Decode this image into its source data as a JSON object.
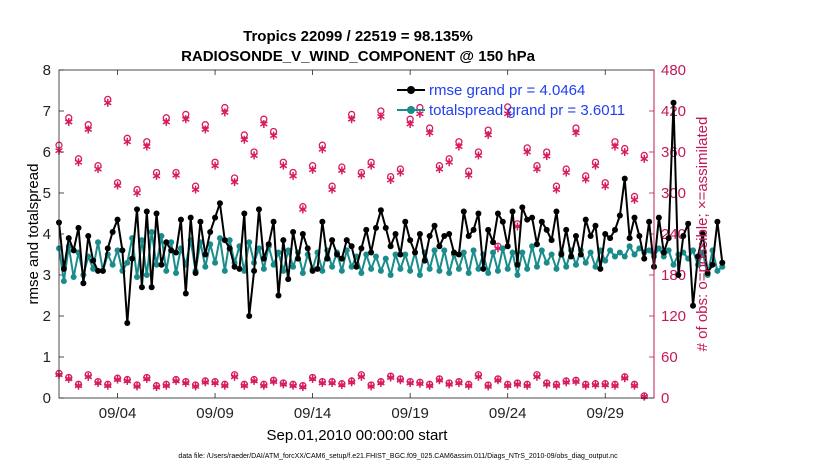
{
  "chart_data": {
    "type": "line",
    "title": "Tropics 22099 / 22519 = 98.135%",
    "subtitle": "RADIOSONDE_V_WIND_COMPONENT @ 150 hPa",
    "xlabel": "Sep.01,2010 00:00:00 start",
    "ylabel_left": "rmse and totalspread",
    "ylabel_right": "# of obs: o=possible; ×=assimilated",
    "footnote": "data file: /Users/raeder/DAI/ATM_forcXX/CAM6_setup/f.e21.FHIST_BGC.f09_025.CAM6assim.011/Diags_NTrS_2010-09/obs_diag_output.nc",
    "xlim": [
      1,
      31.5
    ],
    "ylim_left": [
      0,
      8
    ],
    "ylim_right": [
      0,
      480
    ],
    "left_ticks": [
      0,
      1,
      2,
      3,
      4,
      5,
      6,
      7,
      8
    ],
    "right_ticks": [
      0,
      60,
      120,
      180,
      240,
      300,
      360,
      420,
      480
    ],
    "x_ticks": [
      {
        "day": 4,
        "label": "09/04"
      },
      {
        "day": 9,
        "label": "09/09"
      },
      {
        "day": 14,
        "label": "09/14"
      },
      {
        "day": 19,
        "label": "09/19"
      },
      {
        "day": 24,
        "label": "09/24"
      },
      {
        "day": 29,
        "label": "09/29"
      }
    ],
    "colors": {
      "rmse": "#000000",
      "spread": "#1a8c8c",
      "obs": "#d81b60",
      "right_axis": "#c2185b"
    },
    "series": [
      {
        "name": "rmse grand pr = 4.0464",
        "axis": "left",
        "x_start": 1.0,
        "x_step": 0.25,
        "values": [
          4.28,
          3.15,
          3.9,
          3.6,
          4.15,
          2.8,
          3.95,
          3.35,
          3.1,
          3.1,
          3.65,
          4.05,
          4.35,
          3.6,
          1.83,
          3.4,
          4.6,
          2.7,
          4.55,
          2.7,
          4.5,
          3.25,
          3.8,
          3.6,
          3.55,
          4.35,
          2.55,
          4.4,
          3.05,
          4.3,
          3.5,
          4.05,
          4.4,
          4.75,
          3.85,
          3.65,
          3.2,
          3.15,
          4.5,
          2.0,
          3.1,
          4.6,
          3.4,
          3.75,
          4.3,
          2.5,
          3.85,
          2.9,
          4.05,
          3.4,
          4.0,
          3.65,
          3.1,
          3.15,
          4.3,
          3.4,
          3.85,
          3.5,
          3.4,
          3.85,
          3.7,
          3.2,
          3.65,
          4.1,
          3.55,
          4.15,
          4.58,
          4.15,
          3.7,
          4.0,
          3.5,
          4.3,
          3.85,
          3.55,
          4.0,
          3.35,
          3.95,
          4.2,
          3.7,
          3.95,
          4.0,
          3.55,
          3.5,
          4.55,
          3.95,
          4.1,
          4.5,
          3.15,
          4.1,
          3.8,
          4.5,
          4.3,
          3.7,
          4.55,
          3.25,
          4.65,
          4.35,
          4.4,
          3.75,
          4.3,
          4.1,
          3.85,
          4.55,
          3.5,
          4.1,
          3.45,
          3.95,
          3.5,
          4.35,
          3.95,
          4.2,
          3.15,
          4.0,
          3.9,
          4.1,
          4.45,
          5.35,
          3.9,
          4.4,
          3.95,
          3.4,
          4.3,
          3.2,
          4.4,
          3.55,
          3.9,
          7.2,
          3.0,
          3.95,
          4.25,
          2.25,
          3.45,
          4.0,
          3.05,
          3.25,
          4.3,
          3.3
        ]
      },
      {
        "name": "totalspread grand pr = 3.6011",
        "axis": "left",
        "x_start": 1.0,
        "x_step": 0.25,
        "values": [
          3.65,
          2.85,
          3.7,
          2.95,
          3.55,
          3.0,
          3.45,
          3.15,
          3.8,
          3.1,
          3.5,
          3.25,
          3.6,
          3.1,
          3.3,
          3.9,
          2.95,
          3.85,
          3.0,
          4.05,
          3.25,
          3.95,
          3.1,
          3.8,
          3.05,
          3.65,
          3.25,
          3.85,
          3.1,
          3.8,
          3.2,
          3.75,
          3.3,
          3.9,
          3.1,
          3.85,
          3.3,
          3.7,
          3.1,
          3.8,
          3.3,
          3.65,
          3.15,
          3.7,
          3.25,
          3.55,
          3.1,
          3.6,
          3.2,
          3.55,
          3.05,
          3.5,
          3.15,
          3.55,
          3.1,
          3.6,
          3.2,
          3.55,
          3.1,
          3.6,
          3.2,
          3.45,
          3.05,
          3.5,
          3.15,
          3.45,
          3.1,
          3.4,
          3.0,
          3.5,
          3.15,
          3.5,
          3.1,
          3.55,
          3.0,
          3.55,
          3.15,
          3.6,
          3.1,
          3.6,
          3.05,
          3.5,
          3.15,
          3.55,
          3.05,
          3.6,
          3.15,
          3.5,
          3.05,
          3.55,
          3.1,
          3.65,
          3.15,
          3.55,
          3.0,
          3.55,
          3.15,
          3.7,
          3.2,
          3.6,
          3.3,
          3.5,
          3.15,
          3.55,
          3.2,
          3.6,
          3.25,
          3.6,
          3.3,
          3.55,
          3.2,
          3.6,
          3.35,
          3.6,
          3.45,
          3.55,
          3.45,
          3.7,
          3.5,
          3.65,
          3.55,
          3.6,
          3.45,
          3.65,
          3.45,
          3.6,
          3.25,
          3.5,
          3.55,
          3.4,
          3.6,
          3.25,
          3.55,
          3.0,
          3.6,
          3.1,
          3.2
        ]
      },
      {
        "name": "possible",
        "axis": "right",
        "x_start": 1.0,
        "x_step": 0.5,
        "values_high": [
          370,
          410,
          350,
          400,
          340,
          437,
          315,
          380,
          305,
          375,
          330,
          410,
          330,
          415,
          310,
          400,
          345,
          425,
          322,
          385,
          360,
          408,
          390,
          345,
          330,
          280,
          340,
          370,
          310,
          338,
          415,
          330,
          345,
          420,
          324,
          335,
          408,
          425,
          395,
          340,
          350,
          375,
          332,
          360,
          392,
          222,
          426,
          255,
          366,
          340,
          360,
          310,
          335,
          395,
          325,
          345,
          315,
          375,
          365,
          295,
          355
        ],
        "values_low": [
          36,
          30,
          20,
          34,
          24,
          20,
          29,
          27,
          19,
          30,
          18,
          20,
          27,
          24,
          19,
          25,
          24,
          20,
          34,
          20,
          27,
          20,
          26,
          22,
          20,
          18,
          30,
          24,
          24,
          21,
          25,
          34,
          19,
          24,
          32,
          28,
          24,
          23,
          20,
          28,
          22,
          24,
          20,
          34,
          19,
          28,
          20,
          22,
          20,
          34,
          22,
          20,
          25,
          26,
          20,
          21,
          21,
          20,
          31,
          20,
          3
        ]
      },
      {
        "name": "assimilated",
        "axis": "right",
        "x_start": 1.0,
        "x_step": 0.5,
        "values_high": [
          362,
          404,
          345,
          393,
          335,
          432,
          311,
          375,
          300,
          368,
          325,
          404,
          326,
          408,
          305,
          393,
          340,
          418,
          316,
          378,
          355,
          401,
          384,
          340,
          325,
          276,
          334,
          364,
          305,
          333,
          408,
          326,
          340,
          412,
          319,
          330,
          401,
          416,
          388,
          335,
          345,
          368,
          326,
          355,
          385,
          219,
          416,
          251,
          360,
          335,
          354,
          305,
          330,
          388,
          320,
          340,
          310,
          368,
          360,
          290,
          350
        ],
        "values_low": [
          34,
          28,
          18,
          31,
          22,
          18,
          27,
          25,
          17,
          28,
          16,
          18,
          25,
          22,
          17,
          23,
          22,
          18,
          31,
          18,
          25,
          18,
          24,
          20,
          18,
          16,
          28,
          22,
          22,
          19,
          23,
          31,
          17,
          22,
          30,
          26,
          22,
          21,
          18,
          26,
          20,
          22,
          18,
          31,
          17,
          26,
          18,
          20,
          18,
          31,
          20,
          18,
          23,
          24,
          18,
          19,
          19,
          18,
          29,
          18,
          2
        ]
      }
    ]
  }
}
